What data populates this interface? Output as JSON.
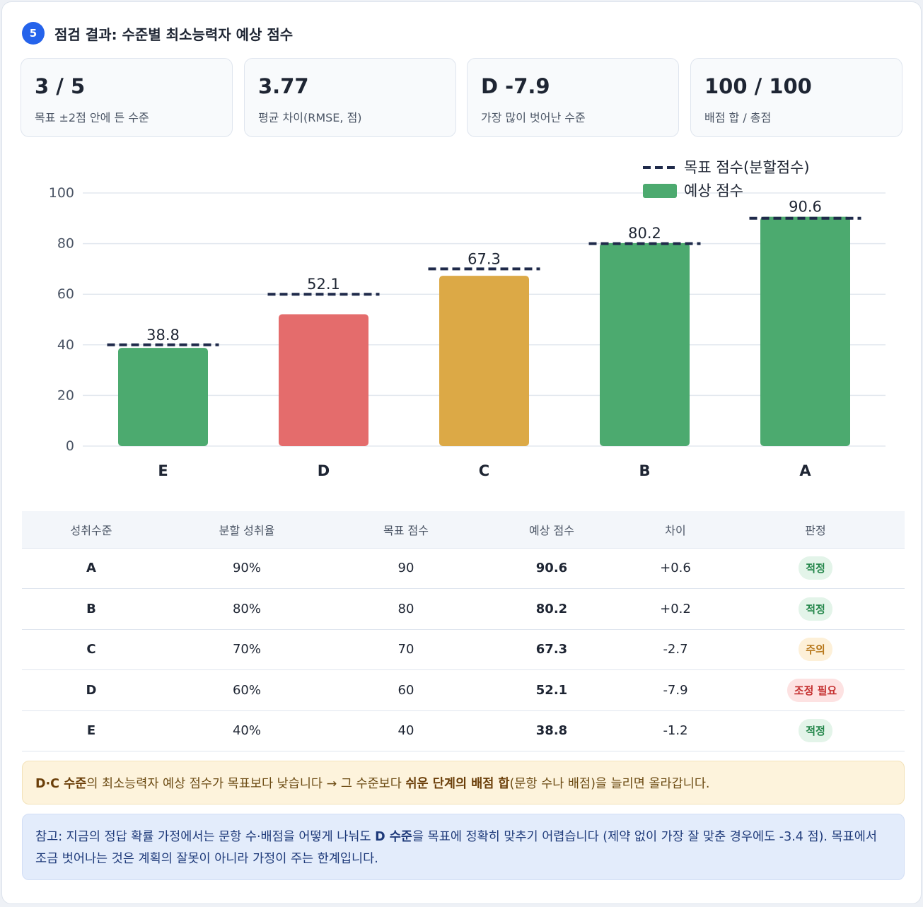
{
  "section": {
    "step": "5",
    "title": "점검 결과: 수준별 최소능력자 예상 점수"
  },
  "stats": [
    {
      "value": "3 / 5",
      "label": "목표 ±2점 안에 든 수준"
    },
    {
      "value": "3.77",
      "label": "평균 차이(RMSE, 점)"
    },
    {
      "value": "D -7.9",
      "label": "가장 많이 벗어난 수준"
    },
    {
      "value": "100 / 100",
      "label": "배점 합 / 총점"
    }
  ],
  "colors": {
    "ok": "#4caa6f",
    "bad": "#e46c6c",
    "warn": "#dca946",
    "target": "#1f2a4a"
  },
  "chart_data": {
    "type": "bar",
    "categories": [
      "E",
      "D",
      "C",
      "B",
      "A"
    ],
    "series": [
      {
        "name": "예상 점수",
        "values": [
          38.8,
          52.1,
          67.3,
          80.2,
          90.6
        ]
      },
      {
        "name": "목표 점수(분할점수)",
        "values": [
          40,
          60,
          70,
          80,
          90
        ]
      }
    ],
    "bar_status": [
      "ok",
      "bad",
      "warn",
      "ok",
      "ok"
    ],
    "data_labels": [
      "38.8",
      "52.1",
      "67.3",
      "80.2",
      "90.6"
    ],
    "ylim": [
      0,
      100
    ],
    "yticks": [
      0,
      20,
      40,
      60,
      80,
      100
    ],
    "legend": {
      "position": "top-right",
      "target_label": "목표 점수(분할점수)",
      "predicted_label": "예상 점수"
    },
    "grid": true
  },
  "table": {
    "headers": [
      "성취수준",
      "분할 성취율",
      "목표 점수",
      "예상 점수",
      "차이",
      "판정"
    ],
    "rows": [
      {
        "level": "A",
        "rate": "90%",
        "target": "90",
        "predicted": "90.6",
        "diff": "+0.6",
        "verdict": "적정",
        "status": "ok"
      },
      {
        "level": "B",
        "rate": "80%",
        "target": "80",
        "predicted": "80.2",
        "diff": "+0.2",
        "verdict": "적정",
        "status": "ok"
      },
      {
        "level": "C",
        "rate": "70%",
        "target": "70",
        "predicted": "67.3",
        "diff": "-2.7",
        "verdict": "주의",
        "status": "warn"
      },
      {
        "level": "D",
        "rate": "60%",
        "target": "60",
        "predicted": "52.1",
        "diff": "-7.9",
        "verdict": "조정 필요",
        "status": "bad"
      },
      {
        "level": "E",
        "rate": "40%",
        "target": "40",
        "predicted": "38.8",
        "diff": "-1.2",
        "verdict": "적정",
        "status": "ok"
      }
    ]
  },
  "notes": {
    "warn_levels": "D·C 수준",
    "warn_text1": "의 최소능력자 예상 점수가 목표보다 낮습니다 → 그 수준보다 ",
    "warn_bold": "쉬운 단계의 배점 합",
    "warn_text2": "(문항 수나 배점)을 늘리면 올라갑니다.",
    "info_text1": "참고: 지금의 정답 확률 가정에서는 문항 수·배점을 어떻게 나눠도 ",
    "info_bold": "D 수준",
    "info_text2": "을 목표에 정확히 맞추기 어렵습니다 (제약 없이 가장 잘 맞춘 경우에도 -3.4 점). 목표에서 조금 벗어나는 것은 계획의 잘못이 아니라 가정이 주는 한계입니다."
  }
}
